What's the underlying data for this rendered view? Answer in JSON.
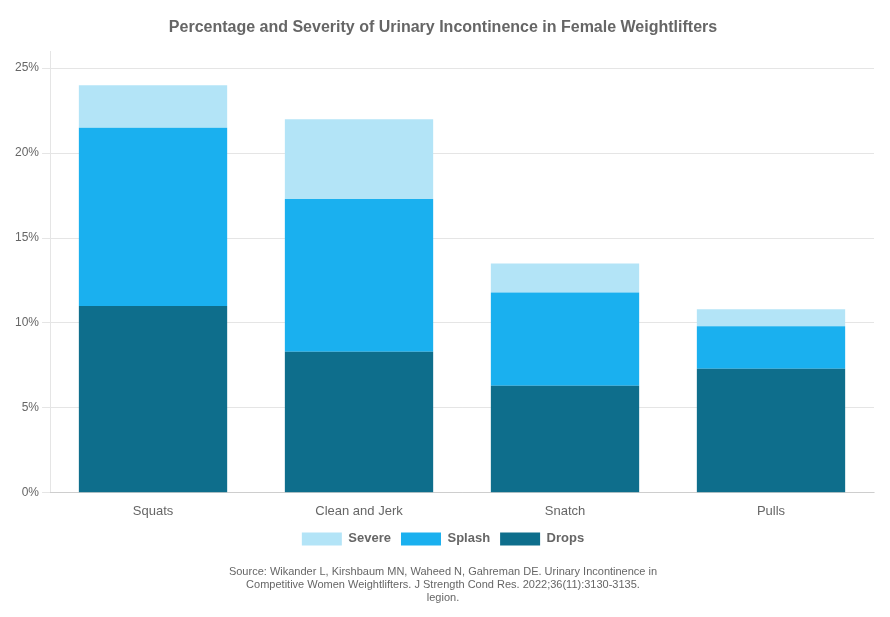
{
  "chart_data": {
    "type": "bar",
    "title": "Percentage and Severity of Urinary Incontinence in Female Weightlifters",
    "categories": [
      "Squats",
      "Clean and Jerk",
      "Snatch",
      "Pulls"
    ],
    "series": [
      {
        "name": "Drops",
        "color": "#0e6e8c",
        "values": [
          0.11,
          0.083,
          0.063,
          0.073
        ]
      },
      {
        "name": "Splash",
        "color": "#1ab0ef",
        "values": [
          0.105,
          0.09,
          0.055,
          0.025
        ]
      },
      {
        "name": "Severe",
        "color": "#b3e4f7",
        "values": [
          0.025,
          0.047,
          0.017,
          0.01
        ]
      }
    ],
    "stacked": true,
    "ylim": [
      0,
      0.26
    ],
    "yticks": [
      {
        "value": 0,
        "label": "0%"
      },
      {
        "value": 0.05,
        "label": "5%"
      },
      {
        "value": 0.1,
        "label": "10%"
      },
      {
        "value": 0.15,
        "label": "15%"
      },
      {
        "value": 0.2,
        "label": "20%"
      },
      {
        "value": 0.25,
        "label": "25%"
      }
    ],
    "grid": true,
    "legend": "bottom",
    "annotations": [
      "Source: Wikander L, Kirshbaum MN, Waheed N, Gahreman DE. Urinary Incontinence in",
      "Competitive Women Weightlifters. J Strength Cond Res. 2022;36(11):3130-3135.",
      "legion."
    ]
  }
}
